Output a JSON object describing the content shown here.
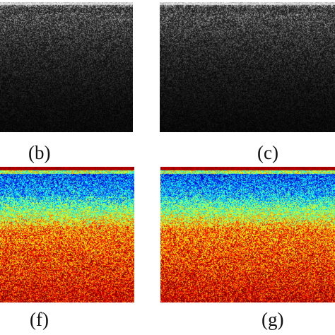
{
  "panels": [
    {
      "id": "b",
      "label": "(b)",
      "kind": "grayscale-oct-scan"
    },
    {
      "id": "c",
      "label": "(c)",
      "kind": "grayscale-oct-scan"
    },
    {
      "id": "f",
      "label": "(f)",
      "kind": "jet-colormap-scan"
    },
    {
      "id": "g",
      "label": "(g)",
      "kind": "jet-colormap-scan"
    }
  ]
}
